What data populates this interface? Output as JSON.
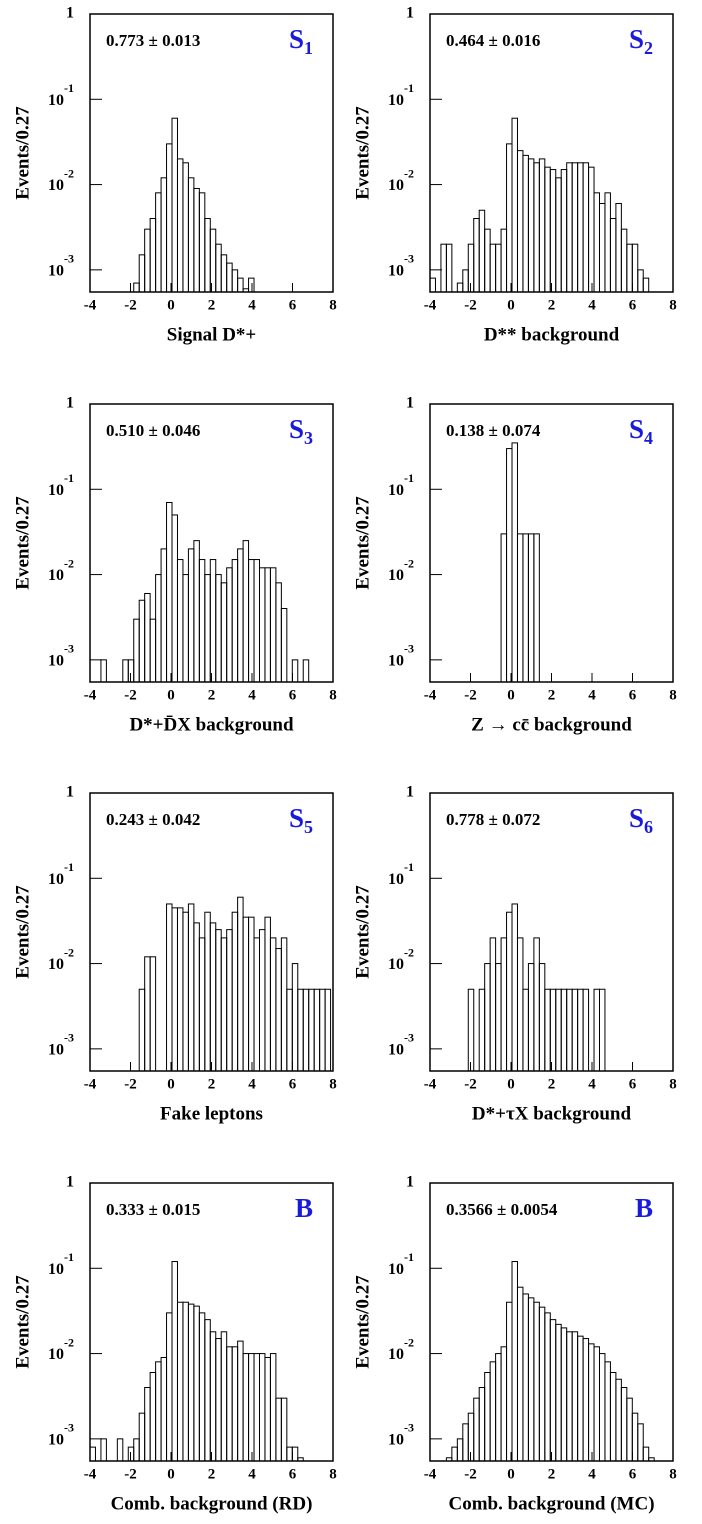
{
  "chart_data": [
    {
      "type": "histogram",
      "annotation": "0.773 ± 0.013",
      "tag": {
        "main": "S",
        "sub": "1"
      },
      "xlabel": "Signal D*+",
      "ylabel": "Events/0.27",
      "bins": [
        -4.0,
        -3.73,
        -3.46,
        -3.19,
        -2.92,
        -2.65,
        -2.38,
        -2.11,
        -1.84,
        -1.57,
        -1.3,
        -1.03,
        -0.76,
        -0.49,
        -0.22,
        0.05,
        0.32,
        0.59,
        0.86,
        1.13,
        1.4,
        1.67,
        1.94,
        2.21,
        2.48,
        2.75,
        3.02,
        3.29,
        3.56,
        3.83,
        4.1,
        4.37,
        4.64,
        4.91,
        5.18,
        5.45,
        5.72,
        5.99,
        6.26,
        6.53,
        6.8,
        7.07,
        7.34,
        7.61,
        7.88
      ],
      "values": [
        0,
        0,
        0,
        0,
        0,
        0,
        0,
        0,
        0.0007,
        0.0015,
        0.003,
        0.004,
        0.008,
        0.012,
        0.03,
        0.06,
        0.02,
        0.018,
        0.012,
        0.009,
        0.008,
        0.004,
        0.003,
        0.002,
        0.0015,
        0.0012,
        0.001,
        0.0008,
        0.0006,
        0.0008,
        0,
        0,
        0,
        0,
        0,
        0,
        0,
        0,
        0,
        0,
        0,
        0,
        0,
        0
      ],
      "xlim": [
        -4,
        8
      ],
      "xticks": [
        -4,
        -2,
        0,
        2,
        4,
        6,
        8
      ],
      "ylim": [
        0.00055,
        1
      ],
      "log_y": true,
      "yticks": [
        {
          "value": 0.001,
          "label": "10",
          "exponent": "-3"
        },
        {
          "value": 0.01,
          "label": "10",
          "exponent": "-2"
        },
        {
          "value": 0.1,
          "label": "10",
          "exponent": "-1"
        },
        1
      ],
      "color": "#000000",
      "tag_color": "#1a1adb"
    },
    {
      "type": "histogram",
      "annotation": "0.464 ± 0.016",
      "tag": {
        "main": "S",
        "sub": "2"
      },
      "xlabel": "D** background",
      "ylabel": "Events/0.27",
      "bins": [
        -4.0,
        -3.73,
        -3.46,
        -3.19,
        -2.92,
        -2.65,
        -2.38,
        -2.11,
        -1.84,
        -1.57,
        -1.3,
        -1.03,
        -0.76,
        -0.49,
        -0.22,
        0.05,
        0.32,
        0.59,
        0.86,
        1.13,
        1.4,
        1.67,
        1.94,
        2.21,
        2.48,
        2.75,
        3.02,
        3.29,
        3.56,
        3.83,
        4.1,
        4.37,
        4.64,
        4.91,
        5.18,
        5.45,
        5.72,
        5.99,
        6.26,
        6.53,
        6.8,
        7.07,
        7.34,
        7.61,
        7.88
      ],
      "values": [
        0.0008,
        0.0005,
        0.002,
        0.002,
        0,
        0.0007,
        0.001,
        0.002,
        0.004,
        0.005,
        0.003,
        0.002,
        0.002,
        0.003,
        0.03,
        0.06,
        0.025,
        0.022,
        0.02,
        0.018,
        0.02,
        0.016,
        0.015,
        0.012,
        0.015,
        0.018,
        0.018,
        0.018,
        0.018,
        0.016,
        0.008,
        0.006,
        0.008,
        0.004,
        0.006,
        0.003,
        0.002,
        0.002,
        0.001,
        0.0008,
        0,
        0,
        0,
        0
      ],
      "xlim": [
        -4,
        8
      ],
      "xticks": [
        -4,
        -2,
        0,
        2,
        4,
        6,
        8
      ],
      "ylim": [
        0.00055,
        1
      ],
      "log_y": true,
      "yticks": [
        {
          "value": 0.001,
          "label": "10",
          "exponent": "-3"
        },
        {
          "value": 0.01,
          "label": "10",
          "exponent": "-2"
        },
        {
          "value": 0.1,
          "label": "10",
          "exponent": "-1"
        },
        1
      ],
      "color": "#000000",
      "tag_color": "#1a1adb"
    },
    {
      "type": "histogram",
      "annotation": "0.510 ± 0.046",
      "tag": {
        "main": "S",
        "sub": "3"
      },
      "xlabel": "D*+D̄X background",
      "ylabel": "Events/0.27",
      "bins": [
        -4.0,
        -3.73,
        -3.46,
        -3.19,
        -2.92,
        -2.65,
        -2.38,
        -2.11,
        -1.84,
        -1.57,
        -1.3,
        -1.03,
        -0.76,
        -0.49,
        -0.22,
        0.05,
        0.32,
        0.59,
        0.86,
        1.13,
        1.4,
        1.67,
        1.94,
        2.21,
        2.48,
        2.75,
        3.02,
        3.29,
        3.56,
        3.83,
        4.1,
        4.37,
        4.64,
        4.91,
        5.18,
        5.45,
        5.72,
        5.99,
        6.26,
        6.53,
        6.8,
        7.07,
        7.34,
        7.61,
        7.88
      ],
      "values": [
        0,
        0,
        0.001,
        0,
        0,
        0,
        0.001,
        0.001,
        0.003,
        0.005,
        0.006,
        0.003,
        0.01,
        0.02,
        0.07,
        0.05,
        0.015,
        0.01,
        0.02,
        0.025,
        0.015,
        0.01,
        0.015,
        0.01,
        0.008,
        0.012,
        0.015,
        0.02,
        0.025,
        0.015,
        0.015,
        0.012,
        0.012,
        0.012,
        0.008,
        0.004,
        0,
        0.001,
        0,
        0.001,
        0,
        0,
        0,
        0
      ],
      "xlim": [
        -4,
        8
      ],
      "xticks": [
        -4,
        -2,
        0,
        2,
        4,
        6,
        8
      ],
      "ylim": [
        0.00055,
        1
      ],
      "log_y": true,
      "yticks": [
        {
          "value": 0.001,
          "label": "10",
          "exponent": "-3"
        },
        {
          "value": 0.01,
          "label": "10",
          "exponent": "-2"
        },
        {
          "value": 0.1,
          "label": "10",
          "exponent": "-1"
        },
        1
      ],
      "color": "#000000",
      "tag_color": "#1a1adb"
    },
    {
      "type": "histogram",
      "annotation": "0.138 ± 0.074",
      "tag": {
        "main": "S",
        "sub": "4"
      },
      "xlabel": "Z → cc̄ background",
      "ylabel": "Events/0.27",
      "bins": [
        -4.0,
        -3.73,
        -3.46,
        -3.19,
        -2.92,
        -2.65,
        -2.38,
        -2.11,
        -1.84,
        -1.57,
        -1.3,
        -1.03,
        -0.76,
        -0.49,
        -0.22,
        0.05,
        0.32,
        0.59,
        0.86,
        1.13,
        1.4,
        1.67,
        1.94,
        2.21,
        2.48,
        2.75,
        3.02,
        3.29,
        3.56,
        3.83,
        4.1,
        4.37,
        4.64,
        4.91,
        5.18,
        5.45,
        5.72,
        5.99,
        6.26,
        6.53,
        6.8,
        7.07,
        7.34,
        7.61,
        7.88
      ],
      "values": [
        0,
        0,
        0,
        0,
        0,
        0,
        0,
        0,
        0,
        0,
        0,
        0,
        0,
        0.03,
        0.3,
        0.35,
        0.03,
        0.03,
        0.03,
        0.03,
        0,
        0,
        0,
        0,
        0,
        0,
        0,
        0,
        0,
        0,
        0,
        0,
        0,
        0,
        0,
        0,
        0,
        0,
        0,
        0,
        0,
        0,
        0,
        0
      ],
      "xlim": [
        -4,
        8
      ],
      "xticks": [
        -4,
        -2,
        0,
        2,
        4,
        6,
        8
      ],
      "ylim": [
        0.00055,
        1
      ],
      "log_y": true,
      "yticks": [
        {
          "value": 0.001,
          "label": "10",
          "exponent": "-3"
        },
        {
          "value": 0.01,
          "label": "10",
          "exponent": "-2"
        },
        {
          "value": 0.1,
          "label": "10",
          "exponent": "-1"
        },
        1
      ],
      "color": "#000000",
      "tag_color": "#1a1adb"
    },
    {
      "type": "histogram",
      "annotation": "0.243 ± 0.042",
      "tag": {
        "main": "S",
        "sub": "5"
      },
      "xlabel": "Fake leptons",
      "ylabel": "Events/0.27",
      "bins": [
        -4.0,
        -3.73,
        -3.46,
        -3.19,
        -2.92,
        -2.65,
        -2.38,
        -2.11,
        -1.84,
        -1.57,
        -1.3,
        -1.03,
        -0.76,
        -0.49,
        -0.22,
        0.05,
        0.32,
        0.59,
        0.86,
        1.13,
        1.4,
        1.67,
        1.94,
        2.21,
        2.48,
        2.75,
        3.02,
        3.29,
        3.56,
        3.83,
        4.1,
        4.37,
        4.64,
        4.91,
        5.18,
        5.45,
        5.72,
        5.99,
        6.26,
        6.53,
        6.8,
        7.07,
        7.34,
        7.61,
        7.88
      ],
      "values": [
        0,
        0,
        0,
        0,
        0,
        0,
        0,
        0,
        0,
        0.005,
        0.012,
        0.012,
        0,
        0,
        0.05,
        0.045,
        0.045,
        0.04,
        0.05,
        0.03,
        0.02,
        0.04,
        0.03,
        0.025,
        0.02,
        0.025,
        0.04,
        0.06,
        0.035,
        0.035,
        0.02,
        0.025,
        0.035,
        0.02,
        0.015,
        0.02,
        0.005,
        0.01,
        0.005,
        0.005,
        0.005,
        0.005,
        0.005,
        0.005
      ],
      "xlim": [
        -4,
        8
      ],
      "xticks": [
        -4,
        -2,
        0,
        2,
        4,
        6,
        8
      ],
      "ylim": [
        0.00055,
        1
      ],
      "log_y": true,
      "yticks": [
        {
          "value": 0.001,
          "label": "10",
          "exponent": "-3"
        },
        {
          "value": 0.01,
          "label": "10",
          "exponent": "-2"
        },
        {
          "value": 0.1,
          "label": "10",
          "exponent": "-1"
        },
        1
      ],
      "color": "#000000",
      "tag_color": "#1a1adb"
    },
    {
      "type": "histogram",
      "annotation": "0.778 ± 0.072",
      "tag": {
        "main": "S",
        "sub": "6"
      },
      "xlabel": "D*+τX background",
      "ylabel": "Events/0.27",
      "bins": [
        -4.0,
        -3.73,
        -3.46,
        -3.19,
        -2.92,
        -2.65,
        -2.38,
        -2.11,
        -1.84,
        -1.57,
        -1.3,
        -1.03,
        -0.76,
        -0.49,
        -0.22,
        0.05,
        0.32,
        0.59,
        0.86,
        1.13,
        1.4,
        1.67,
        1.94,
        2.21,
        2.48,
        2.75,
        3.02,
        3.29,
        3.56,
        3.83,
        4.1,
        4.37,
        4.64,
        4.91,
        5.18,
        5.45,
        5.72,
        5.99,
        6.26,
        6.53,
        6.8,
        7.07,
        7.34,
        7.61,
        7.88
      ],
      "values": [
        0,
        0,
        0,
        0,
        0,
        0,
        0,
        0.005,
        0,
        0.005,
        0.01,
        0.02,
        0.01,
        0.02,
        0.04,
        0.05,
        0.02,
        0.005,
        0.01,
        0.02,
        0.01,
        0.005,
        0.005,
        0.005,
        0.005,
        0.005,
        0.005,
        0.005,
        0.005,
        0,
        0.005,
        0.005,
        0,
        0,
        0,
        0,
        0,
        0,
        0,
        0,
        0,
        0,
        0,
        0
      ],
      "xlim": [
        -4,
        8
      ],
      "xticks": [
        -4,
        -2,
        0,
        2,
        4,
        6,
        8
      ],
      "ylim": [
        0.00055,
        1
      ],
      "log_y": true,
      "yticks": [
        {
          "value": 0.001,
          "label": "10",
          "exponent": "-3"
        },
        {
          "value": 0.01,
          "label": "10",
          "exponent": "-2"
        },
        {
          "value": 0.1,
          "label": "10",
          "exponent": "-1"
        },
        1
      ],
      "color": "#000000",
      "tag_color": "#1a1adb"
    },
    {
      "type": "histogram",
      "annotation": "0.333 ± 0.015",
      "tag": {
        "main": "B"
      },
      "xlabel": "Comb. background (RD)",
      "ylabel": "Events/0.27",
      "bins": [
        -4.0,
        -3.73,
        -3.46,
        -3.19,
        -2.92,
        -2.65,
        -2.38,
        -2.11,
        -1.84,
        -1.57,
        -1.3,
        -1.03,
        -0.76,
        -0.49,
        -0.22,
        0.05,
        0.32,
        0.59,
        0.86,
        1.13,
        1.4,
        1.67,
        1.94,
        2.21,
        2.48,
        2.75,
        3.02,
        3.29,
        3.56,
        3.83,
        4.1,
        4.37,
        4.64,
        4.91,
        5.18,
        5.45,
        5.72,
        5.99,
        6.26,
        6.53,
        6.8,
        7.07,
        7.34,
        7.61,
        7.88
      ],
      "values": [
        0.0008,
        0.0005,
        0.001,
        0.0005,
        0.0005,
        0.001,
        0,
        0.0008,
        0.001,
        0.002,
        0.004,
        0.006,
        0.008,
        0.009,
        0.03,
        0.12,
        0.04,
        0.04,
        0.038,
        0.036,
        0.03,
        0.025,
        0.018,
        0.015,
        0.018,
        0.012,
        0.012,
        0.014,
        0.01,
        0.01,
        0.01,
        0.01,
        0.009,
        0.01,
        0.003,
        0.003,
        0.0008,
        0.0008,
        0.0006,
        0,
        0,
        0,
        0,
        0
      ],
      "xlim": [
        -4,
        8
      ],
      "xticks": [
        -4,
        -2,
        0,
        2,
        4,
        6,
        8
      ],
      "ylim": [
        0.00055,
        1
      ],
      "log_y": true,
      "yticks": [
        {
          "value": 0.001,
          "label": "10",
          "exponent": "-3"
        },
        {
          "value": 0.01,
          "label": "10",
          "exponent": "-2"
        },
        {
          "value": 0.1,
          "label": "10",
          "exponent": "-1"
        },
        1
      ],
      "color": "#000000",
      "tag_color": "#1a1adb"
    },
    {
      "type": "histogram",
      "annotation": "0.3566 ± 0.0054",
      "tag": {
        "main": "B"
      },
      "xlabel": "Comb. background (MC)",
      "ylabel": "Events/0.27",
      "bins": [
        -4.0,
        -3.73,
        -3.46,
        -3.19,
        -2.92,
        -2.65,
        -2.38,
        -2.11,
        -1.84,
        -1.57,
        -1.3,
        -1.03,
        -0.76,
        -0.49,
        -0.22,
        0.05,
        0.32,
        0.59,
        0.86,
        1.13,
        1.4,
        1.67,
        1.94,
        2.21,
        2.48,
        2.75,
        3.02,
        3.29,
        3.56,
        3.83,
        4.1,
        4.37,
        4.64,
        4.91,
        5.18,
        5.45,
        5.72,
        5.99,
        6.26,
        6.53,
        6.8,
        7.07,
        7.34,
        7.61,
        7.88
      ],
      "values": [
        0,
        0.0005,
        0.0005,
        0.0006,
        0.0008,
        0.001,
        0.0015,
        0.002,
        0.003,
        0.004,
        0.006,
        0.008,
        0.01,
        0.012,
        0.04,
        0.12,
        0.06,
        0.05,
        0.045,
        0.04,
        0.035,
        0.03,
        0.025,
        0.022,
        0.02,
        0.018,
        0.018,
        0.016,
        0.015,
        0.013,
        0.012,
        0.01,
        0.008,
        0.006,
        0.005,
        0.004,
        0.003,
        0.002,
        0.0015,
        0.0008,
        0.0006,
        0,
        0,
        0
      ],
      "xlim": [
        -4,
        8
      ],
      "xticks": [
        -4,
        -2,
        0,
        2,
        4,
        6,
        8
      ],
      "ylim": [
        0.00055,
        1
      ],
      "log_y": true,
      "yticks": [
        {
          "value": 0.001,
          "label": "10",
          "exponent": "-3"
        },
        {
          "value": 0.01,
          "label": "10",
          "exponent": "-2"
        },
        {
          "value": 0.1,
          "label": "10",
          "exponent": "-1"
        },
        1
      ],
      "color": "#000000",
      "tag_color": "#1a1adb"
    }
  ]
}
